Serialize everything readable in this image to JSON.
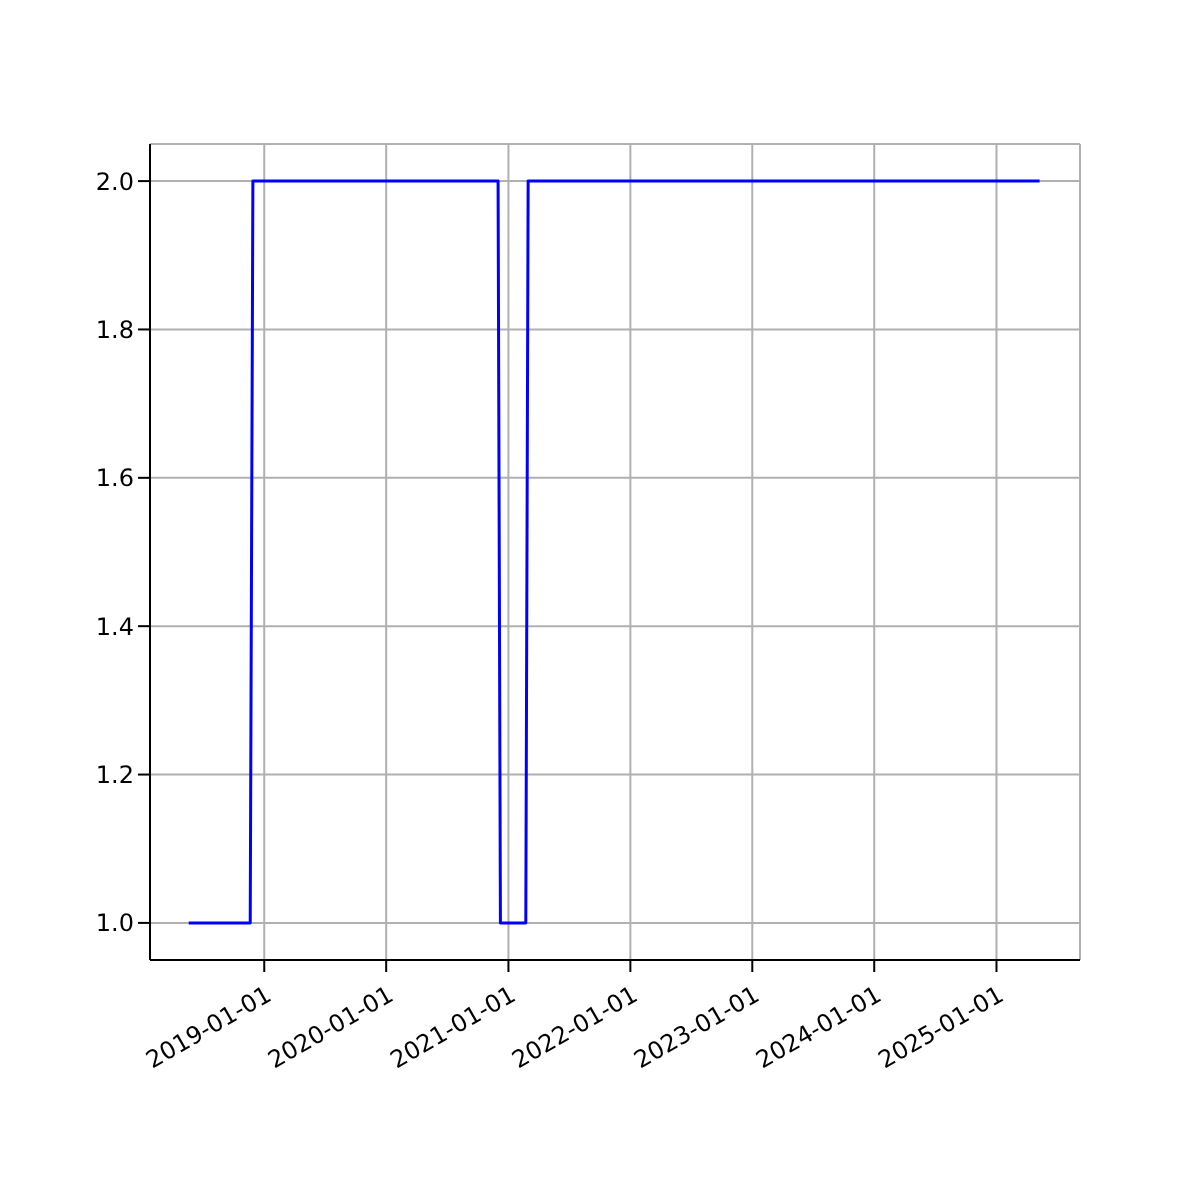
{
  "chart_data": {
    "type": "line",
    "x": [
      "2018-05-20",
      "2018-11-20",
      "2018-11-28",
      "2020-12-01",
      "2020-12-08",
      "2021-02-22",
      "2021-03-01",
      "2025-05-10"
    ],
    "series": [
      {
        "color": "#0000ff",
        "values": [
          1,
          1,
          2,
          2,
          1,
          1,
          2,
          2
        ]
      }
    ],
    "xlim": [
      "2018-01-24",
      "2025-09-08"
    ],
    "xticks": [
      "2019-01-01",
      "2020-01-01",
      "2021-01-01",
      "2022-01-01",
      "2023-01-01",
      "2024-01-01",
      "2025-01-01"
    ],
    "ylim": [
      0.95,
      2.05
    ],
    "yticks": [
      {
        "value": 1,
        "label": "1.0"
      },
      {
        "value": 1.2,
        "label": "1.2"
      },
      {
        "value": 1.4,
        "label": "1.4"
      },
      {
        "value": 1.6,
        "label": "1.6"
      },
      {
        "value": 1.8,
        "label": "1.8"
      },
      {
        "value": 2,
        "label": "2.0"
      }
    ],
    "grid": true,
    "legend": false,
    "marker": "none",
    "line_style": "solid"
  }
}
